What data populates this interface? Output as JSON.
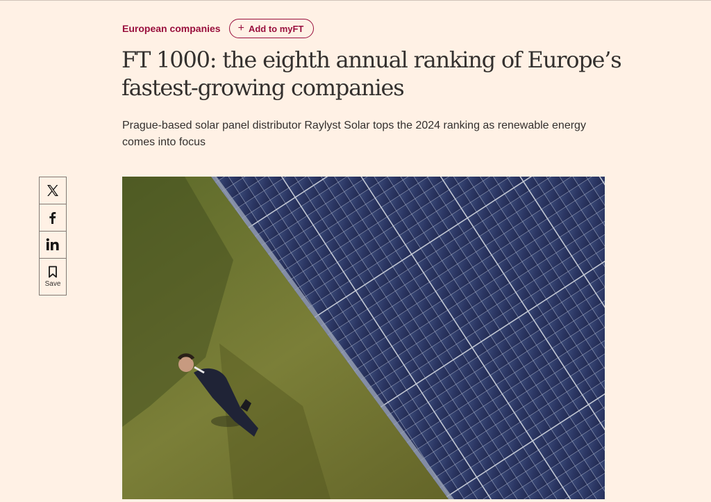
{
  "header": {
    "topic_label": "European companies",
    "myft_label": "Add to myFT"
  },
  "article": {
    "headline": "FT 1000: the eighth annual ranking of Europe’s fastest-growing companies",
    "standfirst": "Prague-based solar panel distributor Raylyst Solar tops the 2024 ranking as renewable energy comes into focus"
  },
  "share": {
    "save_label": "Save",
    "icons": [
      "x-icon",
      "facebook-icon",
      "linkedin-icon",
      "bookmark-icon"
    ]
  },
  "colors": {
    "background": "#fff1e5",
    "accent": "#990f3d",
    "text": "#33302e",
    "panel": "#2e3a63",
    "grass": "#6f7632"
  }
}
